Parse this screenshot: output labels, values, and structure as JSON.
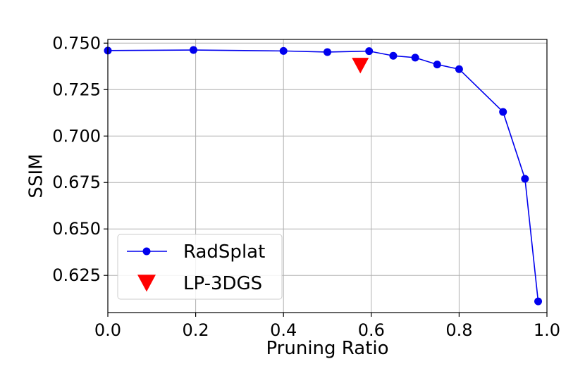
{
  "chart_data": {
    "type": "line",
    "xlabel": "Pruning Ratio",
    "ylabel": "SSIM",
    "xlim": [
      0.0,
      1.0
    ],
    "ylim": [
      0.605,
      0.752
    ],
    "xticks": [
      "0.0",
      "0.2",
      "0.4",
      "0.6",
      "0.8",
      "1.0"
    ],
    "yticks": [
      "0.625",
      "0.650",
      "0.675",
      "0.700",
      "0.725",
      "0.750"
    ],
    "grid": true,
    "legend_position": "bottom-left",
    "series": [
      {
        "name": "RadSplat",
        "kind": "line-marker",
        "color": "#0000ee",
        "x": [
          0.0,
          0.195,
          0.4,
          0.5,
          0.595,
          0.65,
          0.7,
          0.75,
          0.8,
          0.9,
          0.95,
          0.98
        ],
        "y": [
          0.746,
          0.7463,
          0.7458,
          0.7452,
          0.7457,
          0.7432,
          0.7422,
          0.7385,
          0.736,
          0.713,
          0.677,
          0.611
        ]
      },
      {
        "name": "LP-3DGS",
        "kind": "marker",
        "color": "#ff0000",
        "x": [
          0.575
        ],
        "y": [
          0.738
        ]
      }
    ]
  }
}
